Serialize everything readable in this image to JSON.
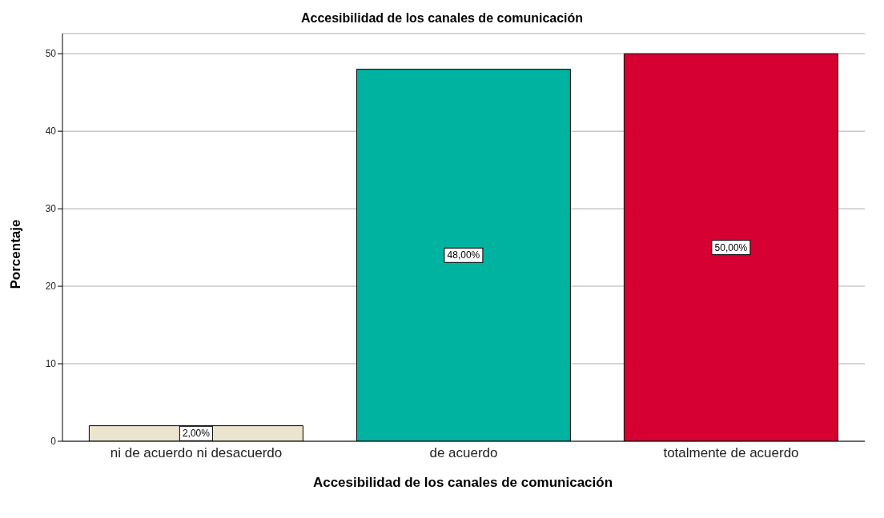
{
  "chart_data": {
    "type": "bar",
    "title": "Accesibilidad de los canales de comunicación",
    "xlabel": "Accesibilidad de los canales de comunicación",
    "ylabel": "Porcentaje",
    "categories": [
      "ni de acuerdo ni desacuerdo",
      "de acuerdo",
      "totalmente de acuerdo"
    ],
    "values": [
      2,
      48,
      50
    ],
    "colors": [
      "#ebe5cf",
      "#00b2a0",
      "#d70032"
    ],
    "value_labels": [
      "2,00%",
      "48,00%",
      "50,00%"
    ],
    "ylim": [
      0,
      52.6
    ],
    "yticks": [
      0,
      10,
      20,
      30,
      40,
      50
    ],
    "grid": "y"
  }
}
